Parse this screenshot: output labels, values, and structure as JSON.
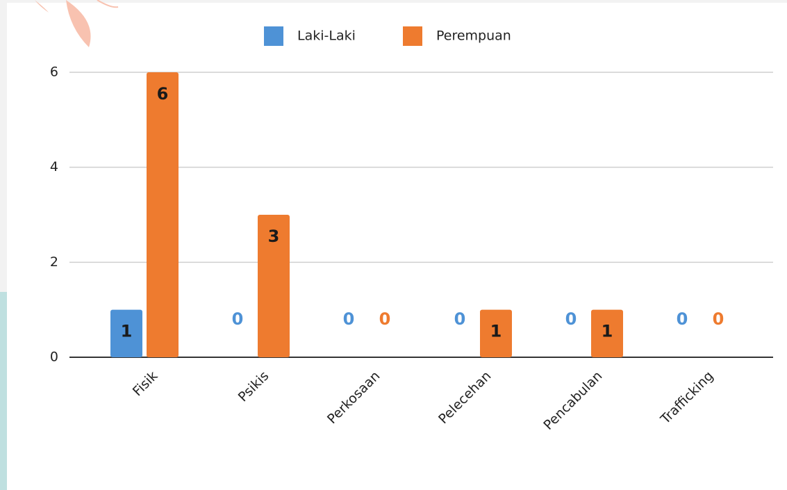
{
  "chart_data": {
    "type": "bar",
    "categories": [
      "Fisik",
      "Psikis",
      "Perkosaan",
      "Pelecehan",
      "Pencabulan",
      "Trafficking"
    ],
    "series": [
      {
        "name": "Laki-Laki",
        "color": "#4e92d6",
        "values": [
          1,
          0,
          0,
          0,
          0,
          0
        ]
      },
      {
        "name": "Perempuan",
        "color": "#ee7b2f",
        "values": [
          6,
          3,
          0,
          1,
          1,
          0
        ]
      }
    ],
    "ylim": [
      0,
      6
    ],
    "yticks": [
      0,
      2,
      4,
      6
    ],
    "grid": true,
    "legend": "top"
  }
}
